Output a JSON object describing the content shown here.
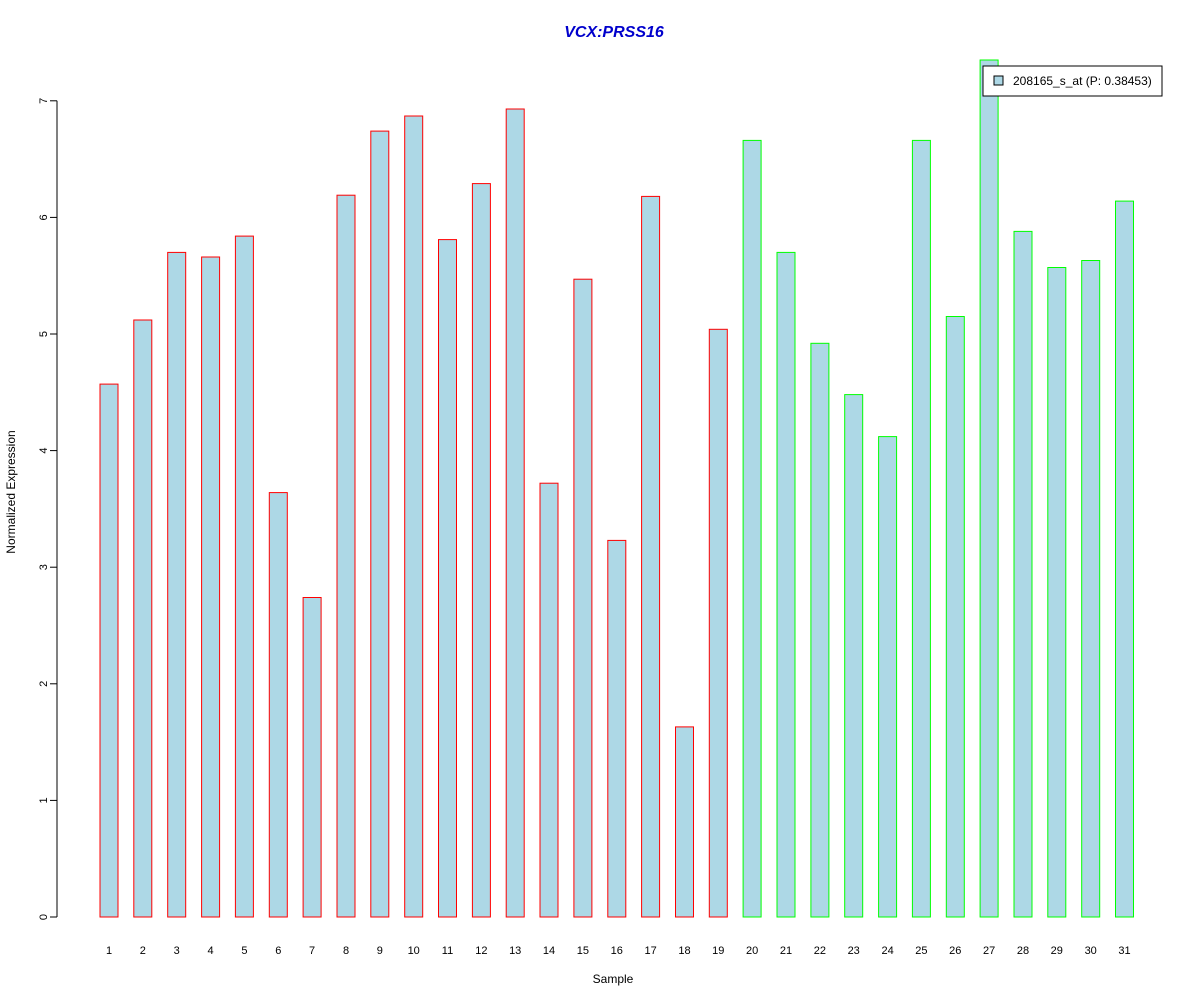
{
  "chart_data": {
    "type": "bar",
    "title": "VCX:PRSS16",
    "xlabel": "Sample",
    "ylabel": "Normalized Expression",
    "ylim": [
      0,
      7
    ],
    "yticks": [
      0,
      1,
      2,
      3,
      4,
      5,
      6,
      7
    ],
    "grid": false,
    "legend_position": "top-right",
    "categories": [
      "1",
      "2",
      "3",
      "4",
      "5",
      "6",
      "7",
      "8",
      "9",
      "10",
      "11",
      "12",
      "13",
      "14",
      "15",
      "16",
      "17",
      "18",
      "19",
      "20",
      "21",
      "22",
      "23",
      "24",
      "25",
      "26",
      "27",
      "28",
      "29",
      "30",
      "31"
    ],
    "series": [
      {
        "name": "208165_s_at (P: 0.38453)",
        "values": [
          4.57,
          5.12,
          5.7,
          5.66,
          5.84,
          3.64,
          2.74,
          6.19,
          6.74,
          6.87,
          5.81,
          6.29,
          6.93,
          3.72,
          5.47,
          3.23,
          6.18,
          1.63,
          5.04,
          6.66,
          5.7,
          4.92,
          4.48,
          4.12,
          6.66,
          5.15,
          7.35,
          5.88,
          5.57,
          5.63,
          6.14
        ]
      }
    ],
    "groups": [
      {
        "from": 1,
        "to": 19,
        "border_color": "#ff0000"
      },
      {
        "from": 20,
        "to": 31,
        "border_color": "#00ff00"
      }
    ],
    "bar_fill": "#add8e6",
    "title_color": "#0000cc"
  }
}
